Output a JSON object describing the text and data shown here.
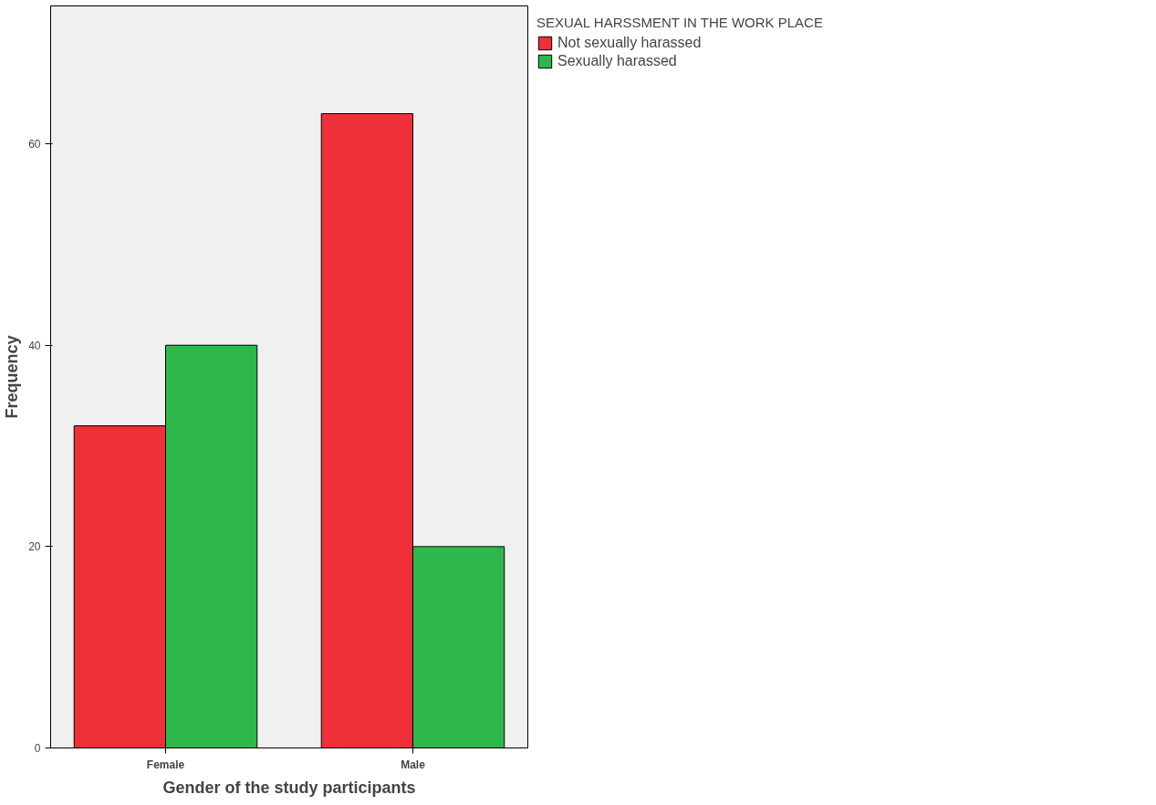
{
  "chart_data": {
    "type": "bar",
    "xlabel": "Gender of the study participants",
    "ylabel": "Frequency",
    "legend_title": "SEXUAL HARSSMENT IN THE WORK PLACE",
    "categories": [
      "Female",
      "Male"
    ],
    "series": [
      {
        "name": "Not sexually harassed",
        "color": "#ef3038",
        "values": [
          32,
          63
        ]
      },
      {
        "name": "Sexually harassed",
        "color": "#2eb84b",
        "values": [
          40,
          20
        ]
      }
    ],
    "ylim": [
      0,
      73.7
    ],
    "yticks": [
      0,
      20,
      40,
      60
    ],
    "grid": false,
    "legend": "top right"
  }
}
